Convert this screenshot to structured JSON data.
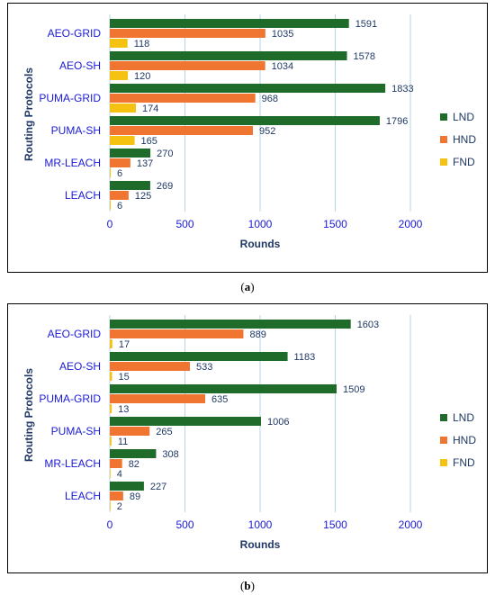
{
  "colors": {
    "LND": "#1e6b2a",
    "HND": "#ef7530",
    "FND": "#f5c211",
    "grid": "#b7d3e6",
    "category": "#1a1ad6",
    "axis_tick": "#1a1ad6",
    "label": "#1f3864"
  },
  "captions": {
    "a": "a",
    "b": "b"
  },
  "chart_data": [
    {
      "type": "bar",
      "orientation": "horizontal",
      "categories": [
        "AEO-GRID",
        "AEO-SH",
        "PUMA-GRID",
        "PUMA-SH",
        "MR-LEACH",
        "LEACH"
      ],
      "series": [
        {
          "name": "LND",
          "values": [
            1591,
            1578,
            1833,
            1796,
            270,
            269
          ]
        },
        {
          "name": "HND",
          "values": [
            1035,
            1034,
            968,
            952,
            137,
            125
          ]
        },
        {
          "name": "FND",
          "values": [
            118,
            120,
            174,
            165,
            6,
            6
          ]
        }
      ],
      "xlabel": "Rounds",
      "ylabel": "Routing Protocols",
      "xlim": [
        0,
        2000
      ],
      "xticks": [
        "0",
        "500",
        "1000",
        "1500",
        "2000"
      ],
      "grid": true,
      "legend": "right"
    },
    {
      "type": "bar",
      "orientation": "horizontal",
      "categories": [
        "AEO-GRID",
        "AEO-SH",
        "PUMA-GRID",
        "PUMA-SH",
        "MR-LEACH",
        "LEACH"
      ],
      "series": [
        {
          "name": "LND",
          "values": [
            1603,
            1183,
            1509,
            1006,
            308,
            227
          ]
        },
        {
          "name": "HND",
          "values": [
            889,
            533,
            635,
            265,
            82,
            89
          ]
        },
        {
          "name": "FND",
          "values": [
            17,
            15,
            13,
            11,
            4,
            2
          ]
        }
      ],
      "xlabel": "Rounds",
      "ylabel": "Routing Protocols",
      "xlim": [
        0,
        2000
      ],
      "xticks": [
        "0",
        "500",
        "1000",
        "1500",
        "2000"
      ],
      "grid": true,
      "legend": "right"
    }
  ]
}
